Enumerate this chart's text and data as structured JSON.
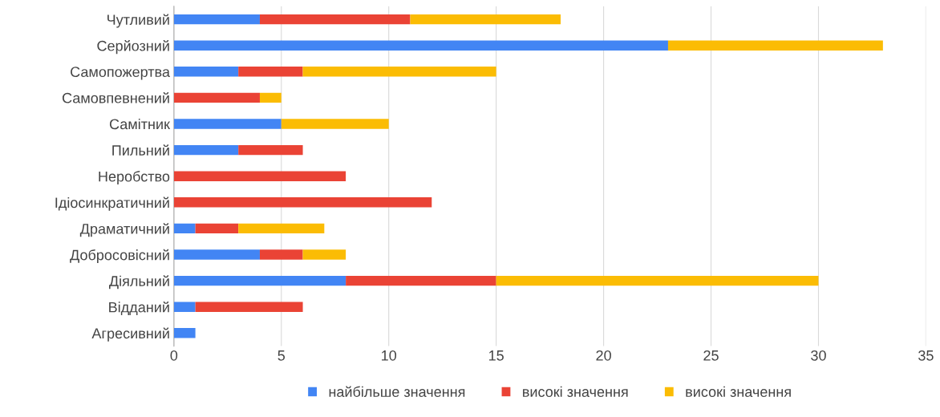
{
  "chart_data": {
    "type": "bar",
    "orientation": "horizontal",
    "stacked": true,
    "categories": [
      "Чутливий",
      "Серйозний",
      "Самопожертва",
      "Самовпевнений",
      "Самітник",
      "Пильний",
      "Неробство",
      "Ідіосинкратичний",
      "Драматичний",
      "Добросовісний",
      "Діяльний",
      "Відданий",
      "Агресивний"
    ],
    "series": [
      {
        "name": "найбільше значення",
        "color": "#4285f4",
        "values": [
          4,
          23,
          3,
          0,
          5,
          3,
          0,
          0,
          1,
          4,
          8,
          1,
          1
        ]
      },
      {
        "name": "високі значення",
        "color": "#ea4335",
        "values": [
          7,
          0,
          3,
          4,
          0,
          3,
          8,
          12,
          2,
          2,
          7,
          5,
          0
        ]
      },
      {
        "name": "високі значення",
        "color": "#fbbc04",
        "values": [
          7,
          10,
          9,
          1,
          5,
          0,
          0,
          0,
          4,
          2,
          15,
          0,
          0
        ]
      }
    ],
    "xlim": [
      0,
      35
    ],
    "xticks": [
      0,
      5,
      10,
      15,
      20,
      25,
      30,
      35
    ],
    "grid": "x",
    "legend": "bottom"
  }
}
